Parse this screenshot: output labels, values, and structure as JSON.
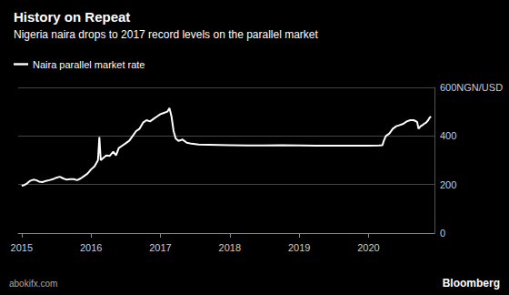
{
  "chart_data": {
    "type": "line",
    "title": "History on Repeat",
    "subtitle": "Nigeria naira drops to 2017 record levels on the parallel market",
    "source": "abokifx.com",
    "credit": "Bloomberg",
    "legend": "top-left",
    "grid": true,
    "x": [
      2015.0,
      2015.04,
      2015.08,
      2015.12,
      2015.17,
      2015.21,
      2015.25,
      2015.3,
      2015.35,
      2015.4,
      2015.45,
      2015.5,
      2015.55,
      2015.6,
      2015.65,
      2015.7,
      2015.75,
      2015.8,
      2015.85,
      2015.9,
      2015.95,
      2016.0,
      2016.05,
      2016.1,
      2016.12,
      2016.14,
      2016.18,
      2016.22,
      2016.27,
      2016.32,
      2016.36,
      2016.4,
      2016.45,
      2016.5,
      2016.55,
      2016.6,
      2016.65,
      2016.7,
      2016.75,
      2016.8,
      2016.85,
      2016.9,
      2016.95,
      2017.0,
      2017.05,
      2017.1,
      2017.13,
      2017.16,
      2017.19,
      2017.22,
      2017.26,
      2017.32,
      2017.38,
      2017.45,
      2017.55,
      2017.7,
      2017.85,
      2018.0,
      2018.25,
      2018.5,
      2018.75,
      2019.0,
      2019.25,
      2019.5,
      2019.75,
      2020.0,
      2020.15,
      2020.2,
      2020.22,
      2020.25,
      2020.3,
      2020.35,
      2020.4,
      2020.45,
      2020.5,
      2020.55,
      2020.6,
      2020.65,
      2020.7,
      2020.72,
      2020.75,
      2020.78,
      2020.8,
      2020.83,
      2020.86,
      2020.88,
      2020.9
    ],
    "series": [
      {
        "name": "Naira parallel market rate",
        "color": "#ffffff",
        "values": [
          195,
          198,
          205,
          215,
          220,
          218,
          212,
          210,
          215,
          218,
          222,
          228,
          232,
          225,
          220,
          222,
          222,
          218,
          225,
          235,
          245,
          262,
          275,
          300,
          395,
          300,
          310,
          320,
          318,
          335,
          320,
          350,
          360,
          370,
          380,
          400,
          420,
          430,
          455,
          465,
          460,
          470,
          480,
          490,
          495,
          500,
          515,
          480,
          420,
          390,
          380,
          385,
          372,
          368,
          365,
          364,
          363,
          362,
          361,
          361,
          362,
          361,
          360,
          360,
          360,
          360,
          361,
          362,
          380,
          400,
          410,
          430,
          440,
          445,
          450,
          460,
          465,
          465,
          458,
          430,
          440,
          445,
          450,
          455,
          465,
          475,
          480
        ]
      }
    ],
    "xlim": [
      2014.95,
      2020.95
    ],
    "xticks": [
      2015,
      2016,
      2017,
      2018,
      2019,
      2020
    ],
    "ylim": [
      0,
      600
    ],
    "yticks": [
      0,
      200,
      400,
      {
        "value": 600,
        "label": "600NGN/USD"
      }
    ]
  }
}
